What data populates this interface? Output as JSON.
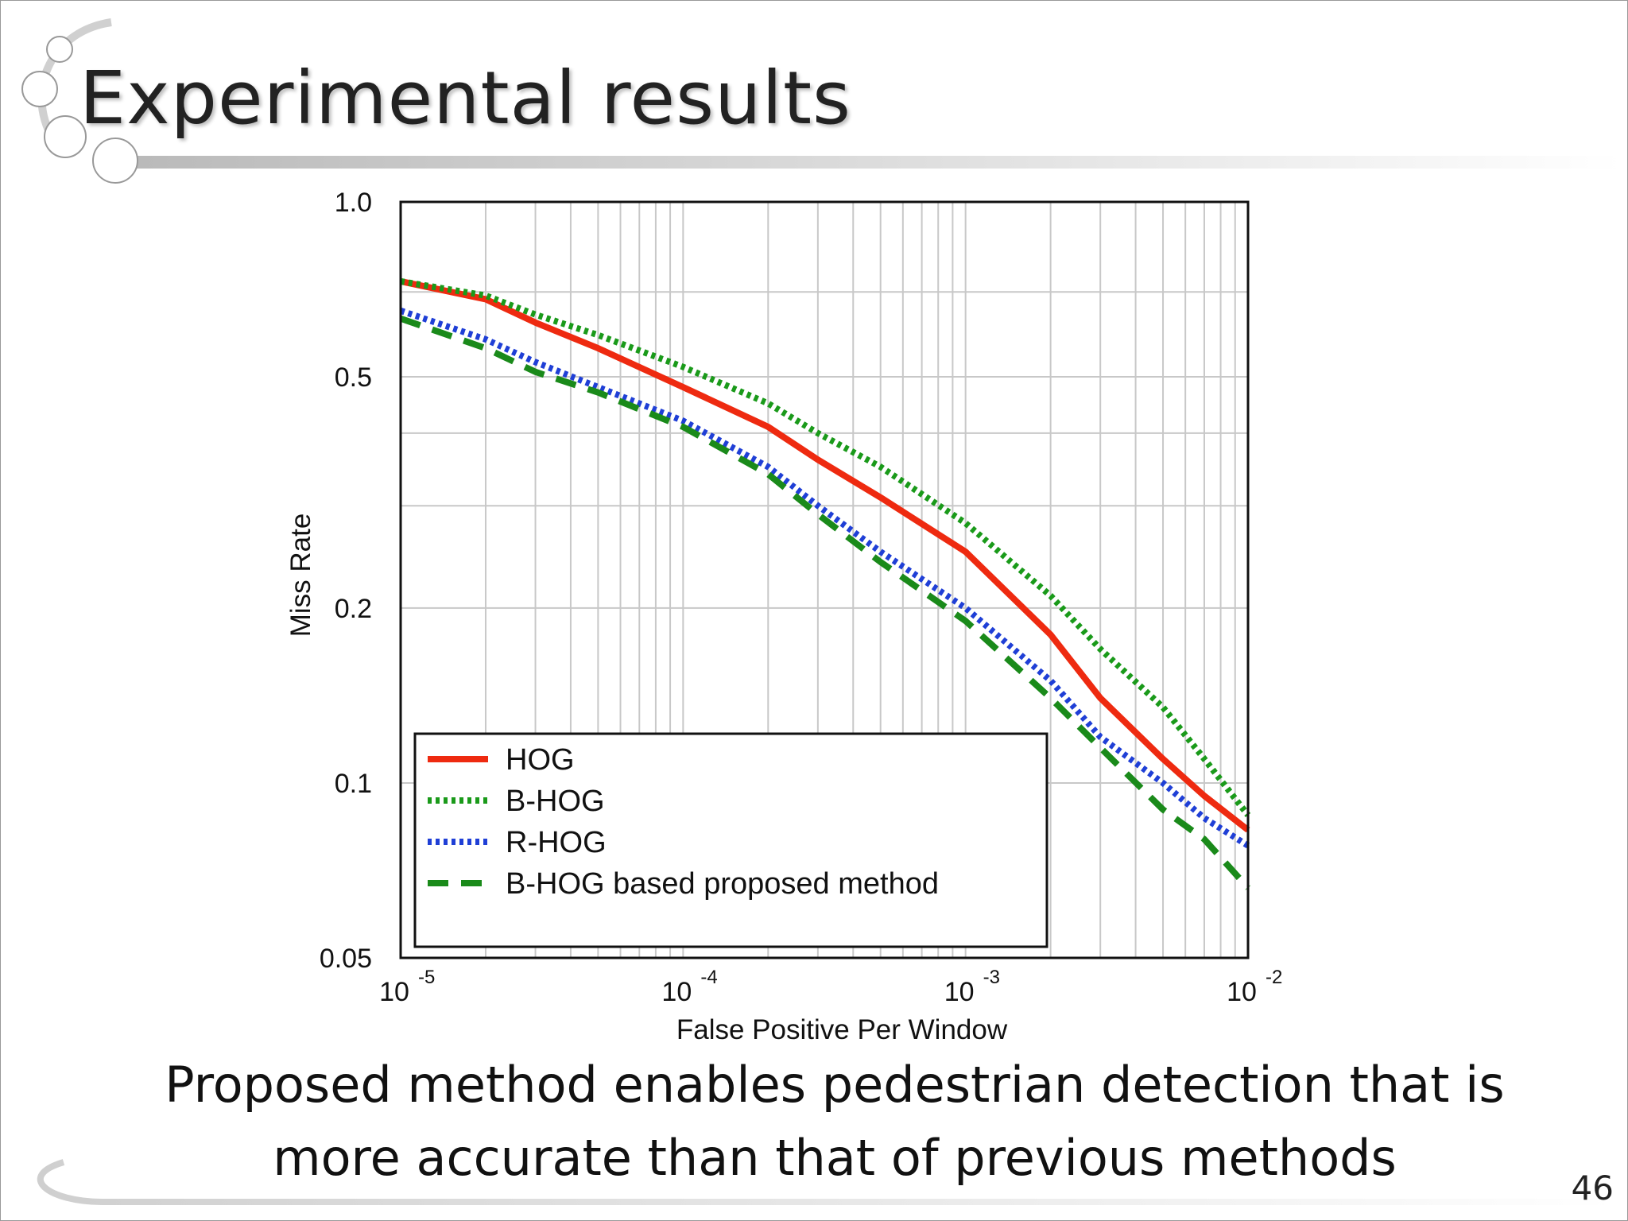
{
  "slide": {
    "title": "Experimental results",
    "caption_line1": "Proposed method enables pedestrian detection that is",
    "caption_line2": "more accurate than that of previous methods",
    "page_number": "46"
  },
  "chart_data": {
    "type": "line",
    "title": "",
    "xlabel": "False Positive Per Window",
    "ylabel": "Miss Rate",
    "xscale": "log",
    "yscale": "log",
    "xlim": [
      1e-05,
      0.01
    ],
    "ylim": [
      0.05,
      1.0
    ],
    "x_ticks": [
      {
        "value": 1e-05,
        "base": "10",
        "exp": "-5"
      },
      {
        "value": 0.0001,
        "base": "10",
        "exp": "-4"
      },
      {
        "value": 0.001,
        "base": "10",
        "exp": "-3"
      },
      {
        "value": 0.01,
        "base": "10",
        "exp": "-2"
      }
    ],
    "y_ticks": [
      {
        "value": 1.0,
        "label": "1.0"
      },
      {
        "value": 0.5,
        "label": "0.5"
      },
      {
        "value": 0.2,
        "label": "0.2"
      },
      {
        "value": 0.1,
        "label": "0.1"
      },
      {
        "value": 0.05,
        "label": "0.05"
      }
    ],
    "grid": true,
    "legend_position": "bottom-left",
    "series": [
      {
        "name": "HOG",
        "color": "#ee2a10",
        "dash": "solid",
        "x": [
          1e-05,
          2e-05,
          3e-05,
          5e-05,
          0.0001,
          0.0002,
          0.0003,
          0.0005,
          0.001,
          0.002,
          0.003,
          0.005,
          0.007,
          0.01
        ],
        "y": [
          0.73,
          0.68,
          0.62,
          0.56,
          0.48,
          0.41,
          0.36,
          0.31,
          0.25,
          0.18,
          0.14,
          0.11,
          0.095,
          0.083
        ]
      },
      {
        "name": "B-HOG",
        "color": "#1a9a1a",
        "dash": "dotted",
        "x": [
          1e-05,
          2e-05,
          3e-05,
          5e-05,
          0.0001,
          0.0002,
          0.0003,
          0.0005,
          0.001,
          0.002,
          0.003,
          0.005,
          0.007,
          0.01
        ],
        "y": [
          0.73,
          0.69,
          0.64,
          0.59,
          0.52,
          0.45,
          0.4,
          0.35,
          0.28,
          0.21,
          0.17,
          0.135,
          0.11,
          0.088
        ]
      },
      {
        "name": "R-HOG",
        "color": "#1f3fd6",
        "dash": "dotted",
        "x": [
          1e-05,
          2e-05,
          3e-05,
          5e-05,
          0.0001,
          0.0002,
          0.0003,
          0.0005,
          0.001,
          0.002,
          0.003,
          0.005,
          0.007,
          0.01
        ],
        "y": [
          0.65,
          0.58,
          0.53,
          0.48,
          0.42,
          0.35,
          0.3,
          0.25,
          0.2,
          0.15,
          0.12,
          0.1,
          0.087,
          0.078
        ]
      },
      {
        "name": "B-HOG based proposed method",
        "color": "#1a8a1a",
        "dash": "dashed",
        "x": [
          1e-05,
          2e-05,
          3e-05,
          5e-05,
          0.0001,
          0.0002,
          0.0003,
          0.0005,
          0.001,
          0.002,
          0.003,
          0.005,
          0.007,
          0.01
        ],
        "y": [
          0.63,
          0.56,
          0.51,
          0.47,
          0.41,
          0.34,
          0.29,
          0.24,
          0.19,
          0.14,
          0.115,
          0.09,
          0.08,
          0.066
        ]
      }
    ]
  }
}
